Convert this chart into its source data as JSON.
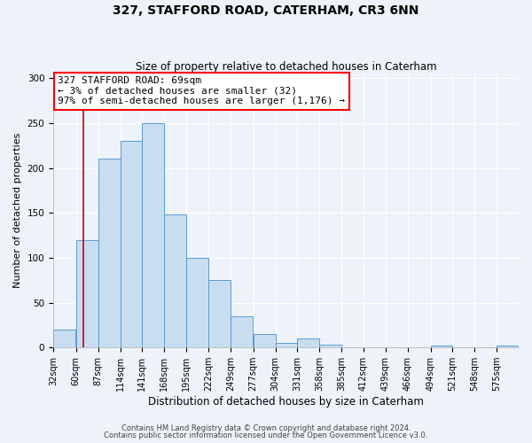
{
  "title": "327, STAFFORD ROAD, CATERHAM, CR3 6NN",
  "subtitle": "Size of property relative to detached houses in Caterham",
  "xlabel": "Distribution of detached houses by size in Caterham",
  "ylabel": "Number of detached properties",
  "bin_labels": [
    "32sqm",
    "60sqm",
    "87sqm",
    "114sqm",
    "141sqm",
    "168sqm",
    "195sqm",
    "222sqm",
    "249sqm",
    "277sqm",
    "304sqm",
    "331sqm",
    "358sqm",
    "385sqm",
    "412sqm",
    "439sqm",
    "466sqm",
    "494sqm",
    "521sqm",
    "548sqm",
    "575sqm"
  ],
  "bin_left_edges": [
    32,
    60,
    87,
    114,
    141,
    168,
    195,
    222,
    249,
    277,
    304,
    331,
    358,
    385,
    412,
    439,
    466,
    494,
    521,
    548,
    575
  ],
  "bar_heights": [
    20,
    120,
    210,
    230,
    250,
    148,
    100,
    75,
    35,
    15,
    5,
    10,
    3,
    0,
    0,
    0,
    0,
    2,
    0,
    0,
    2
  ],
  "bar_face_color": "#c8ddf0",
  "bar_edge_color": "#5b9bd5",
  "property_line_x": 69,
  "property_line_color": "#cc0000",
  "ylim": [
    0,
    305
  ],
  "yticks": [
    0,
    50,
    100,
    150,
    200,
    250,
    300
  ],
  "annotation_text_line1": "327 STAFFORD ROAD: 69sqm",
  "annotation_text_line2": "← 3% of detached houses are smaller (32)",
  "annotation_text_line3": "97% of semi-detached houses are larger (1,176) →",
  "footer_line1": "Contains HM Land Registry data © Crown copyright and database right 2024.",
  "footer_line2": "Contains public sector information licensed under the Open Government Licence v3.0.",
  "bg_color": "#eef3fb",
  "plot_bg_color": "#eef3fb",
  "title_fontsize": 10,
  "subtitle_fontsize": 8.5,
  "axis_label_fontsize": 8,
  "tick_fontsize": 7,
  "annotation_fontsize": 8,
  "footer_fontsize": 6
}
